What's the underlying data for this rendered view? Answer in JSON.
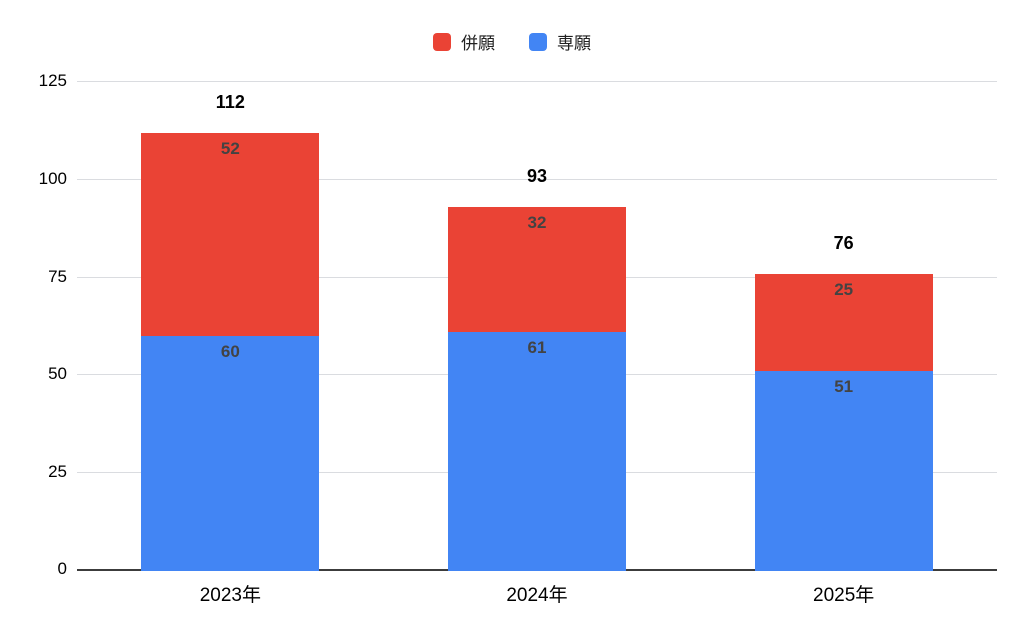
{
  "chart_data": {
    "type": "bar",
    "stacked": true,
    "title": "",
    "xlabel": "",
    "ylabel": "",
    "categories": [
      "2023年",
      "2024年",
      "2025年"
    ],
    "series": [
      {
        "name": "併願",
        "color": "#ea4335",
        "values": [
          52,
          32,
          25
        ]
      },
      {
        "name": "専願",
        "color": "#4285f4",
        "values": [
          60,
          61,
          51
        ]
      }
    ],
    "totals": [
      112,
      93,
      76
    ],
    "yticks": [
      0,
      25,
      50,
      75,
      100,
      125
    ],
    "ylim": [
      0,
      125
    ],
    "grid": true,
    "legend_position": "top"
  },
  "colors": {
    "background": "#ffffff",
    "gridline": "#dadce0",
    "axis_baseline": "#3c3c3c",
    "tick_label": "#000000",
    "segment_label": "#434343",
    "total_label": "#000000",
    "legend_label": "#212121"
  }
}
